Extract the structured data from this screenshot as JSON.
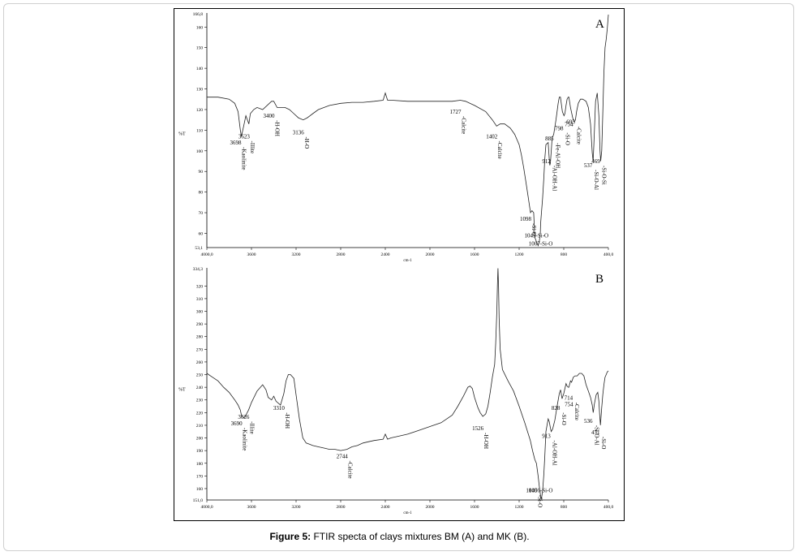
{
  "caption": {
    "label": "Figure 5:",
    "text": "FTIR specta of clays mixtures BM (A) and MK (B)."
  },
  "chart_data": [
    {
      "type": "line",
      "panel_label": "A",
      "xlabel": "cm-1",
      "ylabel": "%T",
      "xlim": [
        4000,
        400
      ],
      "ylim": [
        53.1,
        166.8
      ],
      "x_ticks": [
        4000,
        3600,
        3200,
        2800,
        2400,
        2000,
        1600,
        1200,
        800,
        400
      ],
      "x_tick_labels": [
        "4000,0",
        "3600",
        "3200",
        "2800",
        "2400",
        "2000",
        "1600",
        "1200",
        "800",
        "400,0"
      ],
      "y_ticks": [
        60,
        70,
        80,
        90,
        100,
        110,
        120,
        130,
        140,
        150,
        160
      ],
      "y_tick_labels": [
        "60",
        "70",
        "80",
        "90",
        "100",
        "110",
        "120",
        "130",
        "140",
        "150",
        "160"
      ],
      "y_min_label": "53,1",
      "y_max_label": "166,8",
      "series": [
        {
          "x": [
            4000,
            3900,
            3800,
            3750,
            3720,
            3700,
            3690,
            3670,
            3650,
            3630,
            3623,
            3610,
            3580,
            3550,
            3500,
            3460,
            3420,
            3400,
            3370,
            3340,
            3300,
            3260,
            3220,
            3180,
            3136,
            3100,
            3050,
            3000,
            2900,
            2800,
            2700,
            2600,
            2500,
            2420,
            2400,
            2380,
            2340,
            2200,
            2000,
            1800,
            1727,
            1680,
            1600,
            1500,
            1440,
            1402,
            1370,
            1330,
            1280,
            1240,
            1200,
            1180,
            1160,
            1140,
            1120,
            1098,
            1085,
            1070,
            1060,
            1045,
            1030,
            1020,
            1010,
            1007,
            1000,
            990,
            980,
            970,
            960,
            940,
            930,
            925,
            920,
            912,
            905,
            890,
            870,
            850,
            840,
            830,
            812,
            798,
            790,
            780,
            770,
            760,
            754,
            740,
            720,
            705,
            695,
            685,
            670,
            650,
            630,
            600,
            580,
            560,
            545,
            537,
            530,
            515,
            500,
            485,
            475,
            469,
            460,
            450,
            440,
            430,
            420,
            410,
            400
          ],
          "y": [
            126,
            126,
            125,
            123,
            119,
            110,
            107,
            112,
            117,
            114,
            113,
            118,
            120,
            121,
            120,
            122,
            124,
            124,
            121,
            121,
            121,
            120,
            118,
            116,
            115,
            116,
            118,
            120,
            122,
            123,
            123.5,
            123.5,
            124,
            124.5,
            128,
            124.5,
            124.5,
            124,
            124,
            124,
            124.5,
            124,
            122,
            119,
            115,
            112,
            113,
            113,
            111,
            108,
            103,
            98,
            92,
            85,
            78,
            70,
            71,
            70,
            58,
            56,
            54,
            56,
            60,
            65,
            70,
            77,
            86,
            96,
            103,
            104,
            96,
            93,
            94,
            100,
            106,
            108,
            115,
            123,
            126,
            126,
            119,
            117,
            118,
            122,
            125,
            126,
            126,
            121,
            116,
            114,
            115,
            119,
            123,
            125,
            125,
            124,
            121,
            113,
            99,
            95,
            103,
            124,
            128,
            117,
            100,
            95,
            100,
            118,
            138,
            150,
            154,
            159,
            166
          ]
        }
      ],
      "annotations": [
        {
          "x": 3698,
          "y": 103,
          "text": "3698 -Kaolinite"
        },
        {
          "x": 3623,
          "y": 106,
          "text": "3623 -Illite"
        },
        {
          "x": 3400,
          "y": 116,
          "text": "3400 -H-OH"
        },
        {
          "x": 3136,
          "y": 108,
          "text": "3136 -H-O"
        },
        {
          "x": 1727,
          "y": 118,
          "text": "1727 -Calcite"
        },
        {
          "x": 1402,
          "y": 106,
          "text": "1402 -Calcite"
        },
        {
          "x": 1098,
          "y": 66,
          "text": "1098 -Si-O"
        },
        {
          "x": 1045,
          "y": 58,
          "text": "1045-Si-O"
        },
        {
          "x": 1007,
          "y": 54,
          "text": "1007-Si-O"
        },
        {
          "x": 912,
          "y": 94,
          "text": "912 -Al-OH-Al"
        },
        {
          "x": 885,
          "y": 105,
          "text": "885 -Fe-Al-OH"
        },
        {
          "x": 798,
          "y": 110,
          "text": "798 -Si-O"
        },
        {
          "x": 754,
          "y": 112,
          "text": "754"
        },
        {
          "x": 695,
          "y": 113,
          "text": "695 -Calcite"
        },
        {
          "x": 537,
          "y": 92,
          "text": "537 -Si-O-Al"
        },
        {
          "x": 469,
          "y": 94,
          "text": "469 -Si-O-Si"
        }
      ]
    },
    {
      "type": "line",
      "panel_label": "B",
      "xlabel": "cm-1",
      "ylabel": "%T",
      "xlim": [
        4000,
        400
      ],
      "ylim": [
        151.0,
        334.3
      ],
      "x_ticks": [
        4000,
        3600,
        3200,
        2800,
        2400,
        2000,
        1600,
        1200,
        800,
        400
      ],
      "x_tick_labels": [
        "4000,0",
        "3600",
        "3200",
        "2800",
        "2400",
        "2000",
        "1600",
        "1200",
        "800",
        "400,0"
      ],
      "y_ticks": [
        160,
        170,
        180,
        190,
        200,
        210,
        220,
        230,
        240,
        250,
        260,
        270,
        280,
        290,
        300,
        310,
        320
      ],
      "y_tick_labels": [
        "160",
        "170",
        "180",
        "190",
        "200",
        "210",
        "220",
        "230",
        "240",
        "250",
        "260",
        "270",
        "280",
        "290",
        "300",
        "310",
        "320"
      ],
      "y_min_label": "151,0",
      "y_max_label": "334,3",
      "series": [
        {
          "x": [
            4000,
            3950,
            3900,
            3850,
            3800,
            3750,
            3720,
            3700,
            3690,
            3670,
            3650,
            3626,
            3600,
            3550,
            3500,
            3470,
            3450,
            3420,
            3400,
            3380,
            3340,
            3310,
            3290,
            3270,
            3250,
            3220,
            3200,
            3170,
            3140,
            3110,
            3080,
            3050,
            3000,
            2950,
            2900,
            2850,
            2800,
            2744,
            2700,
            2650,
            2600,
            2550,
            2500,
            2420,
            2400,
            2380,
            2350,
            2300,
            2200,
            2100,
            2000,
            1900,
            1800,
            1750,
            1700,
            1660,
            1640,
            1620,
            1600,
            1570,
            1550,
            1526,
            1500,
            1480,
            1460,
            1440,
            1420,
            1410,
            1400,
            1395,
            1390,
            1385,
            1380,
            1370,
            1350,
            1300,
            1250,
            1200,
            1150,
            1100,
            1080,
            1060,
            1045,
            1030,
            1020,
            1006,
            1000,
            990,
            980,
            970,
            960,
            940,
            930,
            920,
            913,
            900,
            880,
            860,
            840,
            828,
            815,
            800,
            780,
            770,
            760,
            754,
            740,
            730,
            714,
            700,
            680,
            660,
            640,
            620,
            600,
            580,
            560,
            545,
            536,
            525,
            510,
            495,
            485,
            478,
            471,
            460,
            450,
            440,
            430,
            420,
            410,
            400
          ],
          "y": [
            251,
            248,
            245,
            240,
            236,
            230,
            226,
            222,
            218,
            216,
            218,
            222,
            228,
            237,
            242,
            238,
            232,
            230,
            233,
            229,
            226,
            235,
            245,
            250,
            250,
            247,
            234,
            215,
            200,
            196,
            195,
            194,
            193,
            192,
            191,
            191,
            190,
            191,
            193,
            194,
            196,
            197,
            198,
            199,
            203,
            199,
            200,
            201,
            203,
            206,
            209,
            212,
            218,
            225,
            233,
            240,
            241,
            239,
            232,
            224,
            220,
            217,
            219,
            225,
            236,
            248,
            258,
            275,
            300,
            320,
            334,
            320,
            295,
            270,
            254,
            245,
            237,
            225,
            212,
            198,
            190,
            183,
            180,
            170,
            162,
            153,
            152,
            158,
            170,
            185,
            205,
            215,
            213,
            208,
            205,
            207,
            214,
            225,
            235,
            238,
            231,
            235,
            243,
            241,
            240,
            240,
            245,
            244,
            248,
            249,
            249,
            251,
            251,
            249,
            242,
            237,
            232,
            226,
            220,
            227,
            234,
            236,
            229,
            218,
            210,
            224,
            234,
            242,
            248,
            250,
            252,
            253
          ]
        }
      ],
      "annotations": [
        {
          "x": 3690,
          "y": 210,
          "text": "3690 -Kaolinite"
        },
        {
          "x": 3626,
          "y": 215,
          "text": "3626 -Illite"
        },
        {
          "x": 3310,
          "y": 222,
          "text": "3310 -H-OH"
        },
        {
          "x": 2744,
          "y": 184,
          "text": "2744 -Calcite"
        },
        {
          "x": 1526,
          "y": 206,
          "text": "1526 -H-OH"
        },
        {
          "x": 1045,
          "y": 157,
          "text": "1045 -Si-O"
        },
        {
          "x": 1006,
          "y": 157,
          "text": "1006-Si-O"
        },
        {
          "x": 913,
          "y": 200,
          "text": "913 -Al-OH-Al"
        },
        {
          "x": 828,
          "y": 222,
          "text": "828 -Si-O"
        },
        {
          "x": 754,
          "y": 225,
          "text": "754"
        },
        {
          "x": 714,
          "y": 230,
          "text": "714 -Calcite"
        },
        {
          "x": 536,
          "y": 212,
          "text": "536 -Si-O-Al"
        },
        {
          "x": 471,
          "y": 203,
          "text": "471 -Si-O"
        }
      ]
    }
  ]
}
